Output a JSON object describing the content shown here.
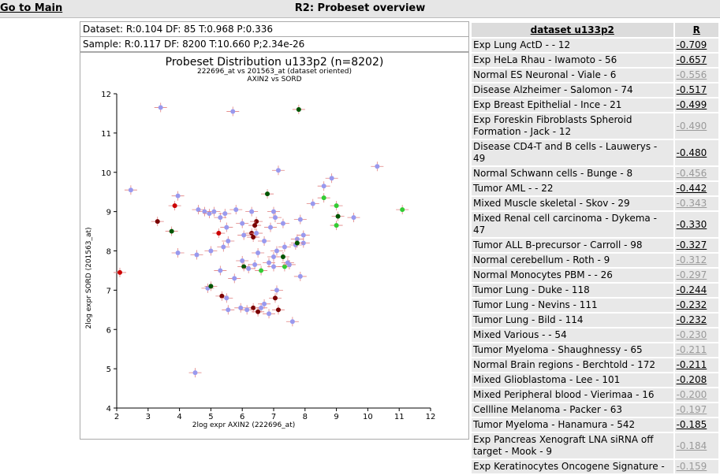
{
  "header": {
    "go_main": "Go to Main",
    "title": "R2: Probeset overview"
  },
  "stats": {
    "dataset": "Dataset: R:0.104 DF: 85 T:0.968 P:0.336",
    "sample": "Sample: R:0.117 DF: 8200 T:10.660 P;2.34e-26"
  },
  "chart_data": {
    "type": "scatter",
    "title": "Probeset Distribution u133p2 (n=8202)",
    "subtitle1": "222696_at vs 201563_at (dataset oriented)",
    "subtitle2": "AXIN2 vs SORD",
    "xlabel": "2log expr AXIN2 (222696_at)",
    "ylabel": "2log expr SORD (201563_at)",
    "xlim": [
      2,
      12
    ],
    "ylim": [
      4,
      12
    ],
    "xticks": [
      "2",
      "3",
      "4",
      "5",
      "6",
      "7",
      "8",
      "9",
      "10",
      "11",
      "12"
    ],
    "yticks": [
      "4",
      "5",
      "6",
      "7",
      "8",
      "9",
      "10",
      "11",
      "12"
    ],
    "colors": {
      "lavender": "#9999ee",
      "red": "#cc0000",
      "darkred": "#7a0000",
      "darkgreen": "#005500",
      "green": "#33cc33",
      "errbar": "#e08080"
    },
    "points": [
      {
        "x": 3.4,
        "y": 11.65,
        "c": "lavender"
      },
      {
        "x": 5.7,
        "y": 11.55,
        "c": "lavender"
      },
      {
        "x": 7.8,
        "y": 11.6,
        "c": "darkgreen"
      },
      {
        "x": 10.3,
        "y": 10.15,
        "c": "lavender"
      },
      {
        "x": 7.15,
        "y": 10.05,
        "c": "lavender"
      },
      {
        "x": 8.85,
        "y": 9.85,
        "c": "lavender"
      },
      {
        "x": 8.6,
        "y": 9.65,
        "c": "lavender"
      },
      {
        "x": 2.45,
        "y": 9.55,
        "c": "lavender"
      },
      {
        "x": 3.95,
        "y": 9.4,
        "c": "lavender"
      },
      {
        "x": 6.8,
        "y": 9.45,
        "c": "darkgreen"
      },
      {
        "x": 8.6,
        "y": 9.35,
        "c": "green"
      },
      {
        "x": 8.25,
        "y": 9.2,
        "c": "lavender"
      },
      {
        "x": 3.85,
        "y": 9.15,
        "c": "red"
      },
      {
        "x": 9.0,
        "y": 9.15,
        "c": "green"
      },
      {
        "x": 4.6,
        "y": 9.05,
        "c": "lavender"
      },
      {
        "x": 4.8,
        "y": 9.0,
        "c": "lavender"
      },
      {
        "x": 4.95,
        "y": 8.95,
        "c": "lavender"
      },
      {
        "x": 5.1,
        "y": 9.0,
        "c": "lavender"
      },
      {
        "x": 5.45,
        "y": 8.95,
        "c": "lavender"
      },
      {
        "x": 5.8,
        "y": 9.05,
        "c": "lavender"
      },
      {
        "x": 5.3,
        "y": 8.85,
        "c": "lavender"
      },
      {
        "x": 7.0,
        "y": 9.0,
        "c": "lavender"
      },
      {
        "x": 6.3,
        "y": 9.0,
        "c": "lavender"
      },
      {
        "x": 11.1,
        "y": 9.05,
        "c": "green"
      },
      {
        "x": 9.55,
        "y": 8.85,
        "c": "lavender"
      },
      {
        "x": 9.05,
        "y": 8.88,
        "c": "darkgreen"
      },
      {
        "x": 7.05,
        "y": 8.85,
        "c": "lavender"
      },
      {
        "x": 7.85,
        "y": 8.8,
        "c": "lavender"
      },
      {
        "x": 3.3,
        "y": 8.75,
        "c": "darkred"
      },
      {
        "x": 6.45,
        "y": 8.75,
        "c": "darkred"
      },
      {
        "x": 6.4,
        "y": 8.65,
        "c": "darkred"
      },
      {
        "x": 6.0,
        "y": 8.7,
        "c": "lavender"
      },
      {
        "x": 6.9,
        "y": 8.6,
        "c": "lavender"
      },
      {
        "x": 7.3,
        "y": 8.7,
        "c": "lavender"
      },
      {
        "x": 9.0,
        "y": 8.65,
        "c": "green"
      },
      {
        "x": 3.75,
        "y": 8.5,
        "c": "darkgreen"
      },
      {
        "x": 5.25,
        "y": 8.45,
        "c": "red"
      },
      {
        "x": 5.5,
        "y": 8.6,
        "c": "lavender"
      },
      {
        "x": 6.3,
        "y": 8.45,
        "c": "darkred"
      },
      {
        "x": 6.05,
        "y": 8.4,
        "c": "lavender"
      },
      {
        "x": 6.45,
        "y": 8.45,
        "c": "lavender"
      },
      {
        "x": 7.95,
        "y": 8.4,
        "c": "lavender"
      },
      {
        "x": 6.35,
        "y": 8.35,
        "c": "darkred"
      },
      {
        "x": 7.75,
        "y": 8.3,
        "c": "lavender"
      },
      {
        "x": 5.55,
        "y": 8.25,
        "c": "lavender"
      },
      {
        "x": 6.7,
        "y": 8.25,
        "c": "lavender"
      },
      {
        "x": 7.95,
        "y": 8.2,
        "c": "lavender"
      },
      {
        "x": 7.7,
        "y": 8.15,
        "c": "lavender"
      },
      {
        "x": 7.75,
        "y": 8.2,
        "c": "darkgreen"
      },
      {
        "x": 5.4,
        "y": 8.1,
        "c": "lavender"
      },
      {
        "x": 7.35,
        "y": 8.1,
        "c": "lavender"
      },
      {
        "x": 5.0,
        "y": 8.0,
        "c": "lavender"
      },
      {
        "x": 7.1,
        "y": 8.0,
        "c": "lavender"
      },
      {
        "x": 3.95,
        "y": 7.95,
        "c": "lavender"
      },
      {
        "x": 4.55,
        "y": 7.9,
        "c": "lavender"
      },
      {
        "x": 6.5,
        "y": 7.95,
        "c": "lavender"
      },
      {
        "x": 7.0,
        "y": 7.85,
        "c": "lavender"
      },
      {
        "x": 6.0,
        "y": 7.75,
        "c": "lavender"
      },
      {
        "x": 7.3,
        "y": 7.85,
        "c": "darkgreen"
      },
      {
        "x": 6.85,
        "y": 7.7,
        "c": "lavender"
      },
      {
        "x": 7.45,
        "y": 7.7,
        "c": "lavender"
      },
      {
        "x": 6.4,
        "y": 7.65,
        "c": "lavender"
      },
      {
        "x": 6.05,
        "y": 7.6,
        "c": "darkgreen"
      },
      {
        "x": 7.0,
        "y": 7.6,
        "c": "lavender"
      },
      {
        "x": 7.35,
        "y": 7.6,
        "c": "green"
      },
      {
        "x": 7.5,
        "y": 7.65,
        "c": "lavender"
      },
      {
        "x": 6.2,
        "y": 7.55,
        "c": "lavender"
      },
      {
        "x": 6.6,
        "y": 7.5,
        "c": "green"
      },
      {
        "x": 5.3,
        "y": 7.5,
        "c": "lavender"
      },
      {
        "x": 7.85,
        "y": 7.35,
        "c": "lavender"
      },
      {
        "x": 2.1,
        "y": 7.45,
        "c": "red"
      },
      {
        "x": 5.75,
        "y": 7.3,
        "c": "lavender"
      },
      {
        "x": 4.9,
        "y": 7.05,
        "c": "lavender"
      },
      {
        "x": 5.0,
        "y": 7.1,
        "c": "darkgreen"
      },
      {
        "x": 7.1,
        "y": 7.0,
        "c": "lavender"
      },
      {
        "x": 5.35,
        "y": 6.85,
        "c": "darkred"
      },
      {
        "x": 5.5,
        "y": 6.8,
        "c": "lavender"
      },
      {
        "x": 7.05,
        "y": 6.8,
        "c": "darkred"
      },
      {
        "x": 6.7,
        "y": 6.65,
        "c": "lavender"
      },
      {
        "x": 5.95,
        "y": 6.55,
        "c": "lavender"
      },
      {
        "x": 5.55,
        "y": 6.5,
        "c": "lavender"
      },
      {
        "x": 6.35,
        "y": 6.55,
        "c": "darkred"
      },
      {
        "x": 6.6,
        "y": 6.55,
        "c": "lavender"
      },
      {
        "x": 7.15,
        "y": 6.5,
        "c": "darkred"
      },
      {
        "x": 6.5,
        "y": 6.45,
        "c": "darkred"
      },
      {
        "x": 6.85,
        "y": 6.4,
        "c": "lavender"
      },
      {
        "x": 6.15,
        "y": 6.5,
        "c": "lavender"
      },
      {
        "x": 7.6,
        "y": 6.2,
        "c": "lavender"
      },
      {
        "x": 4.5,
        "y": 4.9,
        "c": "lavender"
      }
    ]
  },
  "table": {
    "headers": [
      "dataset u133p2",
      "R"
    ],
    "rows": [
      {
        "name": "Exp Lung ActD - - 12",
        "r": "-0.709",
        "strong": true
      },
      {
        "name": "Exp HeLa Rhau - Iwamoto - 56",
        "r": "-0.657",
        "strong": true
      },
      {
        "name": "Normal ES Neuronal - Viale - 6",
        "r": "-0.556",
        "strong": false
      },
      {
        "name": "Disease Alzheimer - Salomon - 74",
        "r": "-0.517",
        "strong": true
      },
      {
        "name": "Exp Breast Epithelial - Ince - 21",
        "r": "-0.499",
        "strong": true
      },
      {
        "name": "Exp Foreskin Fibroblasts Spheroid Formation - Jack - 12",
        "r": "-0.490",
        "strong": false
      },
      {
        "name": "Disease CD4-T and B cells - Lauwerys - 49",
        "r": "-0.480",
        "strong": true
      },
      {
        "name": "Normal Schwann cells - Bunge - 8",
        "r": "-0.456",
        "strong": false
      },
      {
        "name": "Tumor AML - - 22",
        "r": "-0.442",
        "strong": true
      },
      {
        "name": "Mixed Muscle skeletal - Skov - 29",
        "r": "-0.343",
        "strong": false
      },
      {
        "name": "Mixed Renal cell carcinoma - Dykema - 47",
        "r": "-0.330",
        "strong": true
      },
      {
        "name": "Tumor ALL B-precursor - Carroll - 98",
        "r": "-0.327",
        "strong": true
      },
      {
        "name": "Normal cerebellum - Roth - 9",
        "r": "-0.312",
        "strong": false
      },
      {
        "name": "Normal Monocytes PBM - - 26",
        "r": "-0.297",
        "strong": false
      },
      {
        "name": "Tumor Lung - Duke - 118",
        "r": "-0.244",
        "strong": true
      },
      {
        "name": "Tumor Lung - Nevins - 111",
        "r": "-0.232",
        "strong": true
      },
      {
        "name": "Tumor Lung - Bild - 114",
        "r": "-0.232",
        "strong": true
      },
      {
        "name": "Mixed Various - - 54",
        "r": "-0.230",
        "strong": false
      },
      {
        "name": "Tumor Myeloma - Shaughnessy - 65",
        "r": "-0.211",
        "strong": false
      },
      {
        "name": "Normal Brain regions - Berchtold - 172",
        "r": "-0.211",
        "strong": true
      },
      {
        "name": "Mixed Glioblastoma - Lee - 101",
        "r": "-0.208",
        "strong": true
      },
      {
        "name": "Mixed Peripheral blood - Vierimaa - 16",
        "r": "-0.200",
        "strong": false
      },
      {
        "name": "Cellline Melanoma - Packer - 63",
        "r": "-0.197",
        "strong": false
      },
      {
        "name": "Tumor Myeloma - Hanamura - 542",
        "r": "-0.185",
        "strong": true
      },
      {
        "name": "Exp Pancreas Xenograft LNA siRNA off target - Mook - 9",
        "r": "-0.184",
        "strong": false
      },
      {
        "name": "Exp Keratinocytes Oncogene Signature -",
        "r": "-0.159",
        "strong": false
      }
    ]
  }
}
